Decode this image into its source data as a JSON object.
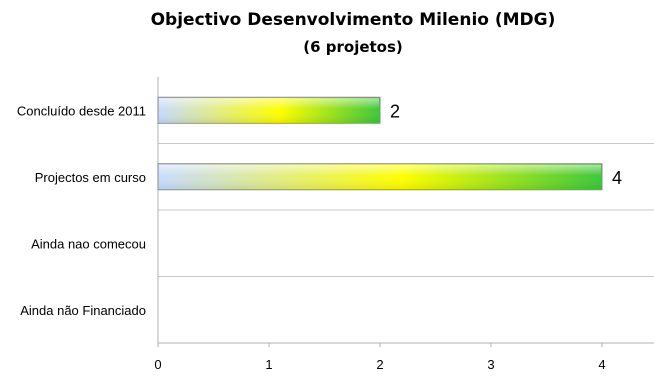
{
  "chart_data": {
    "type": "bar",
    "orientation": "horizontal",
    "title": "Objectivo Desenvolvimento Milenio (MDG)",
    "subtitle": "(6 projetos)",
    "categories": [
      "Concluído desde 2011",
      "Projectos em curso",
      "Ainda nao comecou",
      "Ainda não Financiado"
    ],
    "values": [
      2,
      4,
      null,
      null
    ],
    "data_labels": [
      "2",
      "4",
      "",
      ""
    ],
    "xlim": [
      0,
      4.5
    ],
    "xticks": [
      "0",
      "1",
      "2",
      "3",
      "4"
    ],
    "grid": "horizontal separators between categories",
    "legend": "none",
    "colors": {
      "bar_start": "#c8dcff",
      "bar_mid": "#ffff00",
      "bar_end": "#3cc83c"
    }
  }
}
